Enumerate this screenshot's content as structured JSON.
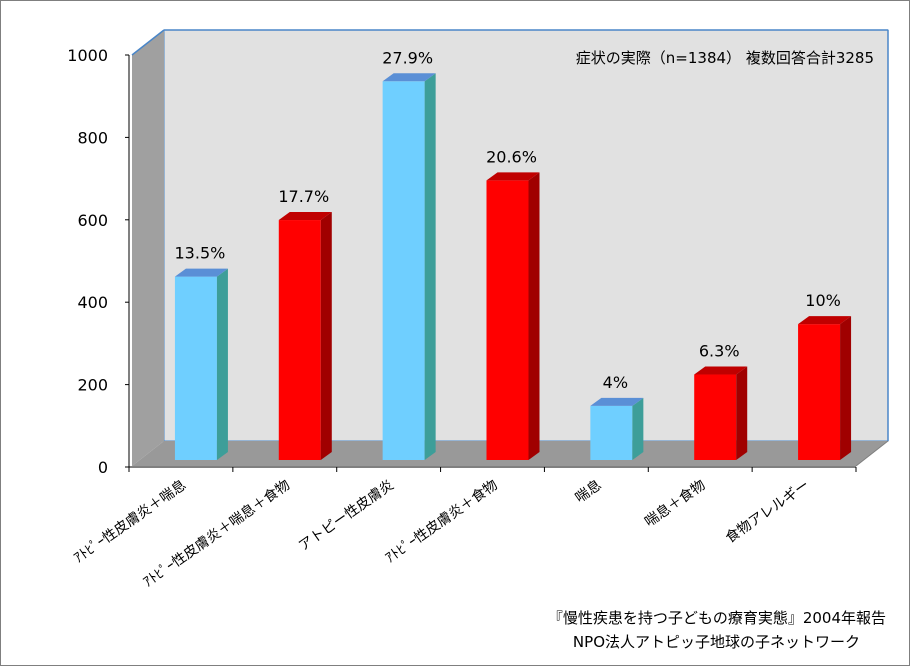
{
  "chart_data": {
    "type": "bar",
    "title": "",
    "subtitle": "症状の実際（n=1384） 複数回答合計3285",
    "xlabel": "",
    "ylabel": "",
    "ylim": [
      0,
      1000
    ],
    "yticks": [
      "0",
      "200",
      "400",
      "600",
      "800",
      "1000"
    ],
    "yticks_values": [
      0,
      200,
      400,
      600,
      800,
      1000
    ],
    "grid": false,
    "legend": "none",
    "categories": [
      "ｱﾄﾋﾟｰ性皮膚炎＋喘息",
      "ｱﾄﾋﾟｰ性皮膚炎＋喘息＋食物",
      "アトピー性皮膚炎",
      "ｱﾄﾋﾟｰ性皮膚炎＋食物",
      "喘息",
      "喘息＋食物",
      "食物アレルギー"
    ],
    "values": [
      444,
      581,
      917,
      677,
      131,
      207,
      329
    ],
    "data_labels": [
      "13.5%",
      "17.7%",
      "27.9%",
      "20.6%",
      "4%",
      "6.3%",
      "10%"
    ],
    "bar_colors": [
      "blue",
      "red",
      "blue",
      "red",
      "blue",
      "red",
      "red"
    ],
    "colors": {
      "blue_front": "#6fcfff",
      "blue_side": "#3d9e99",
      "blue_top": "#5a8fd6",
      "red_front": "#ff0000",
      "red_side": "#a00000",
      "red_top": "#c00000",
      "plot_back": "#e1e1e1",
      "plot_side": "#a0a0a0",
      "plot_floor": "#999999",
      "axis_edge": "#4a86c8"
    }
  },
  "footer": {
    "line1": "『慢性疾患を持つ子どもの療育実態』2004年報告",
    "line2": "NPO法人アトピッ子地球の子ネットワーク"
  }
}
